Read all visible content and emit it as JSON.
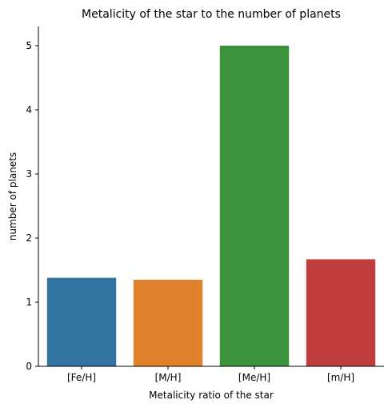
{
  "chart_data": {
    "type": "bar",
    "title": "Metalicity of the star to the number of planets",
    "xlabel": "Metalicity ratio of the star",
    "ylabel": "number of planets",
    "categories": [
      "[Fe/H]",
      "[M/H]",
      "[Me/H]",
      "[m/H]"
    ],
    "values": [
      1.38,
      1.35,
      5.0,
      1.67
    ],
    "colors": [
      "#3274a1",
      "#e1812c",
      "#3a923a",
      "#c03d3e"
    ],
    "ylim": [
      0,
      5.3
    ],
    "yticks": [
      0,
      1,
      2,
      3,
      4,
      5
    ],
    "grid": false,
    "legend": "none"
  }
}
